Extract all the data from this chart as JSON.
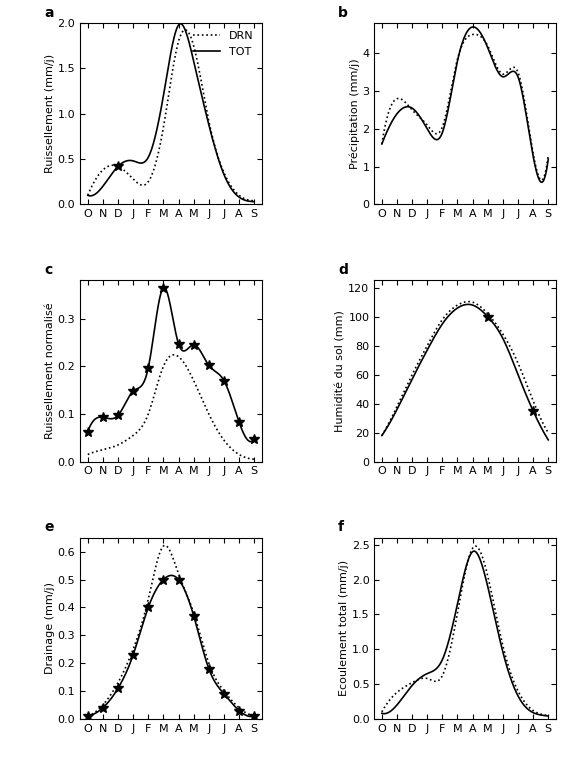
{
  "months": [
    "O",
    "N",
    "D",
    "J",
    "F",
    "M",
    "A",
    "M",
    "J",
    "J",
    "A",
    "S"
  ],
  "panel_a": {
    "label": "a",
    "ylabel": "Ruissellement (mm/j)",
    "ylim": [
      0.0,
      2.0
    ],
    "yticks": [
      0.0,
      0.5,
      1.0,
      1.5,
      2.0
    ],
    "drn": [
      0.1,
      0.38,
      0.42,
      0.28,
      0.25,
      0.85,
      1.8,
      1.75,
      0.92,
      0.35,
      0.1,
      0.04
    ],
    "tot": [
      0.1,
      0.2,
      0.42,
      0.48,
      0.52,
      1.2,
      1.98,
      1.58,
      0.88,
      0.33,
      0.08,
      0.03
    ],
    "has_star": true,
    "star_idx": 2
  },
  "panel_b": {
    "label": "b",
    "ylabel": "Précipitation (mm/j)",
    "ylim": [
      0,
      4.8
    ],
    "yticks": [
      0,
      1,
      2,
      3,
      4
    ],
    "drn": [
      1.6,
      2.8,
      2.5,
      2.1,
      2.05,
      3.85,
      4.5,
      4.2,
      3.45,
      3.5,
      1.35,
      1.3
    ],
    "tot": [
      1.6,
      2.4,
      2.55,
      2.0,
      1.9,
      3.8,
      4.7,
      4.15,
      3.38,
      3.38,
      1.28,
      1.2
    ],
    "has_star": false,
    "star_idx": -1
  },
  "panel_c": {
    "label": "c",
    "ylabel": "Ruissellement normalisé",
    "ylim": [
      0.0,
      0.38
    ],
    "yticks": [
      0.0,
      0.1,
      0.2,
      0.3
    ],
    "drn": [
      0.015,
      0.025,
      0.035,
      0.055,
      0.1,
      0.2,
      0.22,
      0.17,
      0.1,
      0.045,
      0.015,
      0.005
    ],
    "tot": [
      0.063,
      0.093,
      0.097,
      0.148,
      0.197,
      0.365,
      0.247,
      0.245,
      0.202,
      0.17,
      0.083,
      0.047
    ],
    "has_star": true,
    "star_idx": -1
  },
  "panel_d": {
    "label": "d",
    "ylabel": "Humidité du sol (mm)",
    "ylim": [
      0,
      125
    ],
    "yticks": [
      0,
      20,
      40,
      60,
      80,
      100,
      120
    ],
    "drn": [
      18,
      38,
      60,
      80,
      98,
      108,
      110,
      102,
      88,
      68,
      42,
      20
    ],
    "tot": [
      18,
      36,
      57,
      77,
      95,
      106,
      108,
      100,
      85,
      60,
      35,
      15
    ],
    "has_star": false,
    "star_idx": -1,
    "star_indices": [
      7,
      10
    ]
  },
  "panel_e": {
    "label": "e",
    "ylabel": "Drainage (mm/j)",
    "ylim": [
      0,
      0.65
    ],
    "yticks": [
      0.0,
      0.1,
      0.2,
      0.3,
      0.4,
      0.5,
      0.6
    ],
    "drn": [
      0.01,
      0.05,
      0.13,
      0.25,
      0.43,
      0.62,
      0.52,
      0.38,
      0.2,
      0.1,
      0.04,
      0.01
    ],
    "tot": [
      0.01,
      0.04,
      0.11,
      0.23,
      0.4,
      0.5,
      0.5,
      0.37,
      0.18,
      0.09,
      0.03,
      0.01
    ],
    "has_star": true,
    "star_idx": -1
  },
  "panel_f": {
    "label": "f",
    "ylabel": "Ecoulement total (mm/j)",
    "ylim": [
      0,
      2.6
    ],
    "yticks": [
      0.0,
      0.5,
      1.0,
      1.5,
      2.0,
      2.5
    ],
    "drn": [
      0.1,
      0.38,
      0.52,
      0.58,
      0.62,
      1.52,
      2.45,
      2.05,
      1.05,
      0.4,
      0.12,
      0.05
    ],
    "tot": [
      0.08,
      0.2,
      0.48,
      0.65,
      0.85,
      1.65,
      2.4,
      1.9,
      0.96,
      0.33,
      0.09,
      0.04
    ],
    "has_star": false,
    "star_idx": -1
  },
  "legend_drn_label": "DRN",
  "legend_tot_label": "TOT",
  "color": "#000000",
  "background_color": "#ffffff"
}
